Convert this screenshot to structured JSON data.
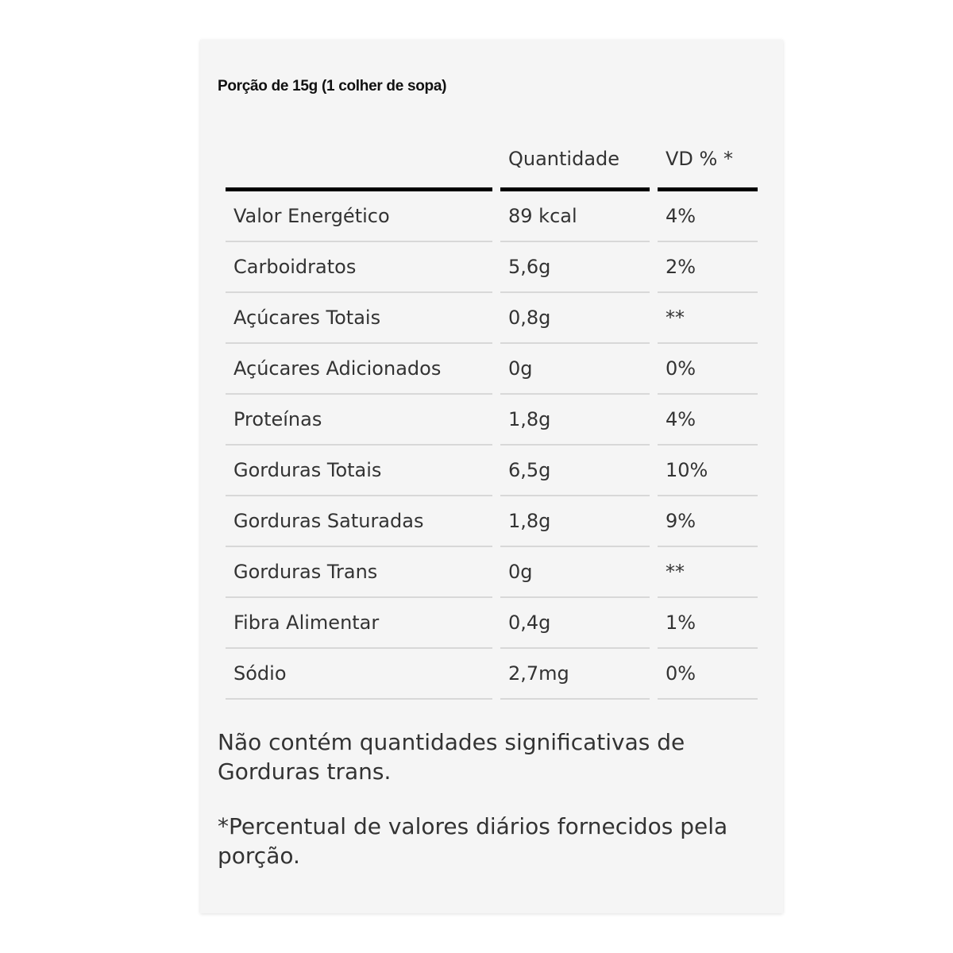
{
  "portion": "Porção de 15g (1 colher de sopa)",
  "headers": [
    "",
    "Quantidade",
    "VD % *"
  ],
  "rows": [
    [
      "Valor Energético",
      "89 kcal",
      "4%"
    ],
    [
      "Carboidratos",
      "5,6g",
      "2%"
    ],
    [
      "Açúcares Totais",
      "0,8g",
      "**"
    ],
    [
      "Açúcares Adicionados",
      "0g",
      "0%"
    ],
    [
      "Proteínas",
      "1,8g",
      "4%"
    ],
    [
      "Gorduras Totais",
      "6,5g",
      "10%"
    ],
    [
      "Gorduras Saturadas",
      "1,8g",
      "9%"
    ],
    [
      "Gorduras Trans",
      "0g",
      "**"
    ],
    [
      "Fibra Alimentar",
      "0,4g",
      "1%"
    ],
    [
      "Sódio",
      "2,7mg",
      "0%"
    ]
  ],
  "notes": [
    "Não contém quantidades significativas de Gorduras trans.",
    "*Percentual de valores diários fornecidos pela porção."
  ]
}
